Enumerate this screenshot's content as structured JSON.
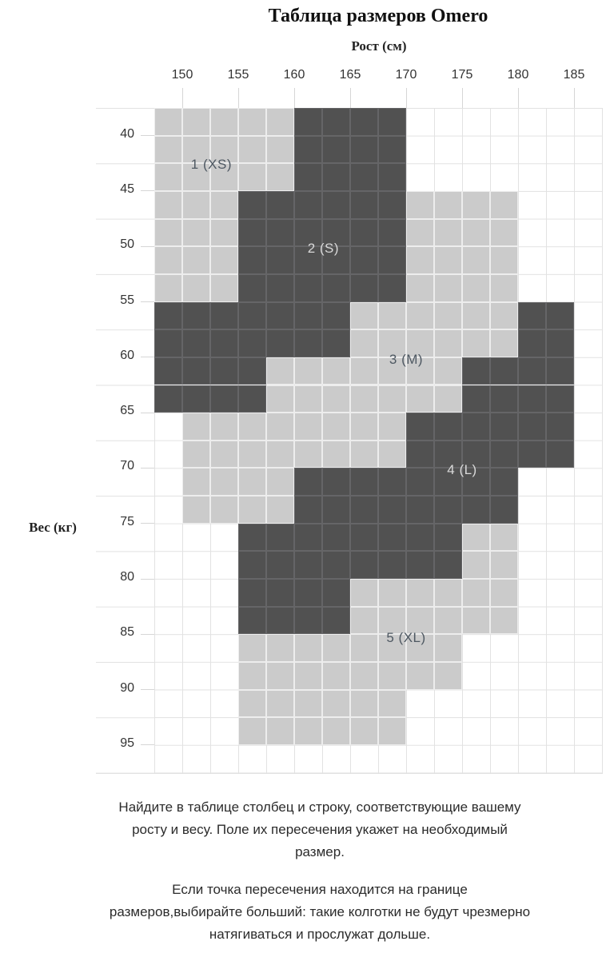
{
  "title": "Таблица размеров Omero",
  "colors": {
    "cell_light": "#cbcbcb",
    "cell_dark": "#515151",
    "cell_border_light": "#ededed",
    "cell_border_dark": "#656567",
    "grid_line": "#e2e2e2",
    "tick": "#d6d6d6",
    "axis_text": "#333333",
    "label_on_light": "#4e5862",
    "label_on_dark": "#d9d9d9",
    "body_text": "#2b2b2b"
  },
  "chart_data": {
    "type": "heatmap",
    "title": "Таблица размеров Omero",
    "xlabel": "Рост (см)",
    "ylabel": "Вес (кг)",
    "x_ticks": [
      150,
      155,
      160,
      165,
      170,
      175,
      180,
      185
    ],
    "y_ticks": [
      40,
      45,
      50,
      55,
      60,
      65,
      70,
      75,
      80,
      85,
      90,
      95
    ],
    "x_range_cm": [
      147.5,
      187.5
    ],
    "y_range_kg": [
      37.5,
      97.5
    ],
    "cell_step_cm": 2.5,
    "cell_step_kg": 2.5,
    "legend_position": "none",
    "grid": true,
    "bands": [
      {
        "kg": [
          37.5,
          45
        ],
        "segments": [
          {
            "cm": [
              147.5,
              160
            ],
            "size": "1 (XS)",
            "shade": "light"
          },
          {
            "cm": [
              160,
              170
            ],
            "size": "2 (S)",
            "shade": "dark"
          }
        ]
      },
      {
        "kg": [
          45,
          55
        ],
        "segments": [
          {
            "cm": [
              147.5,
              155
            ],
            "size": "1 (XS)",
            "shade": "light"
          },
          {
            "cm": [
              155,
              170
            ],
            "size": "2 (S)",
            "shade": "dark"
          },
          {
            "cm": [
              170,
              180
            ],
            "size": "3 (M)",
            "shade": "light"
          }
        ]
      },
      {
        "kg": [
          55,
          60
        ],
        "segments": [
          {
            "cm": [
              147.5,
              165
            ],
            "size": "2 (S)",
            "shade": "dark"
          },
          {
            "cm": [
              165,
              180
            ],
            "size": "3 (M)",
            "shade": "light"
          },
          {
            "cm": [
              180,
              185
            ],
            "size": "4 (L)",
            "shade": "dark"
          }
        ]
      },
      {
        "kg": [
          60,
          65
        ],
        "segments": [
          {
            "cm": [
              147.5,
              157.5
            ],
            "size": "2 (S)",
            "shade": "dark"
          },
          {
            "cm": [
              157.5,
              175
            ],
            "size": "3 (M)",
            "shade": "light"
          },
          {
            "cm": [
              175,
              185
            ],
            "size": "4 (L)",
            "shade": "dark"
          }
        ]
      },
      {
        "kg": [
          65,
          70
        ],
        "segments": [
          {
            "cm": [
              150,
              170
            ],
            "size": "3 (M)",
            "shade": "light"
          },
          {
            "cm": [
              170,
              185
            ],
            "size": "4 (L)",
            "shade": "dark"
          }
        ]
      },
      {
        "kg": [
          70,
          75
        ],
        "segments": [
          {
            "cm": [
              150,
              160
            ],
            "size": "3 (M)",
            "shade": "light"
          },
          {
            "cm": [
              160,
              180
            ],
            "size": "4 (L)",
            "shade": "dark"
          }
        ]
      },
      {
        "kg": [
          75,
          80
        ],
        "segments": [
          {
            "cm": [
              155,
              175
            ],
            "size": "4 (L)",
            "shade": "dark"
          },
          {
            "cm": [
              175,
              180
            ],
            "size": "5 (XL)",
            "shade": "light"
          }
        ]
      },
      {
        "kg": [
          80,
          85
        ],
        "segments": [
          {
            "cm": [
              155,
              165
            ],
            "size": "4 (L)",
            "shade": "dark"
          },
          {
            "cm": [
              165,
              180
            ],
            "size": "5 (XL)",
            "shade": "light"
          }
        ]
      },
      {
        "kg": [
          85,
          90
        ],
        "segments": [
          {
            "cm": [
              155,
              175
            ],
            "size": "5 (XL)",
            "shade": "light"
          }
        ]
      },
      {
        "kg": [
          90,
          95
        ],
        "segments": [
          {
            "cm": [
              155,
              170
            ],
            "size": "5 (XL)",
            "shade": "light"
          }
        ]
      }
    ],
    "size_labels": [
      {
        "text": "1 (XS)",
        "cm": 152.6,
        "kg": 42.6,
        "shade": "light"
      },
      {
        "text": "2 (S)",
        "cm": 162.6,
        "kg": 50.2,
        "shade": "dark"
      },
      {
        "text": "3 (M)",
        "cm": 170.0,
        "kg": 60.2,
        "shade": "light"
      },
      {
        "text": "4 (L)",
        "cm": 175.0,
        "kg": 70.2,
        "shade": "dark"
      },
      {
        "text": "5 (XL)",
        "cm": 170.0,
        "kg": 85.3,
        "shade": "light"
      }
    ]
  },
  "x_axis": {
    "title": "Рост (см)"
  },
  "y_axis": {
    "title": "Вес (кг)"
  },
  "footnotes": {
    "p1": "Найдите в таблице столбец и строку, соответствующие вашему\nросту и весу. Поле их пересечения укажет на необходимый\nразмер.",
    "p2": "Если точка пересечения находится на границе\nразмеров,выбирайте больший: такие колготки не будут чрезмерно\nнатягиваться и прослужат дольше."
  }
}
